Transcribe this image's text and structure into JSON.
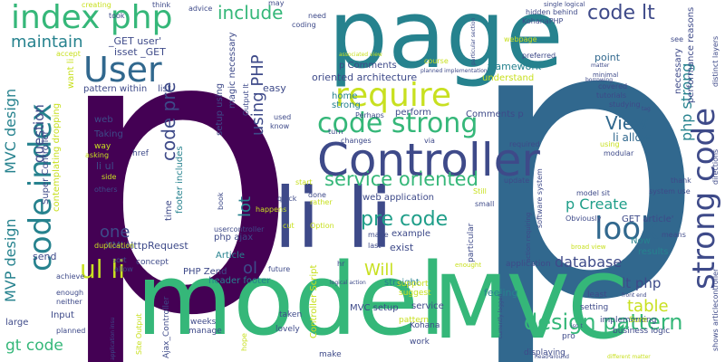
{
  "palette": {
    "navy": "#3b2a6e",
    "purple": "#440154",
    "blue": "#31688e",
    "indigo": "#3e4a89",
    "teal": "#26828e",
    "green": "#35b779",
    "lime": "#b5de2b",
    "lightgreen": "#6ece58",
    "seafoam": "#1f9e89",
    "yellowgreen": "#c8e020"
  },
  "words": [
    {
      "text": "p"
    },
    {
      "text": "p"
    },
    {
      "text": "page"
    },
    {
      "text": "model"
    },
    {
      "text": "MVC"
    },
    {
      "text": "li li"
    },
    {
      "text": "Controller"
    },
    {
      "text": "index php"
    },
    {
      "text": "User"
    },
    {
      "text": "require"
    },
    {
      "text": "code strong"
    },
    {
      "text": "strong code"
    },
    {
      "text": "code index"
    },
    {
      "text": "look"
    },
    {
      "text": "pre code"
    },
    {
      "text": "service oriented"
    },
    {
      "text": "ul li"
    },
    {
      "text": "design pattern"
    },
    {
      "text": "code lt"
    },
    {
      "text": "include"
    },
    {
      "text": "maintain"
    },
    {
      "text": "MVC design"
    },
    {
      "text": "MVP design"
    },
    {
      "text": "View"
    },
    {
      "text": "p Create"
    },
    {
      "text": "table"
    },
    {
      "text": "database"
    },
    {
      "text": "lt php"
    },
    {
      "text": "gt code"
    },
    {
      "text": "one"
    },
    {
      "text": "Will"
    },
    {
      "text": "ol"
    },
    {
      "text": "using PHP"
    },
    {
      "text": "code pre"
    },
    {
      "text": "lot"
    },
    {
      "text": "php strong"
    },
    {
      "text": "oriented architecture"
    },
    {
      "text": "framework"
    },
    {
      "text": "question"
    },
    {
      "text": "li allow"
    },
    {
      "text": "point"
    },
    {
      "text": "Comments p"
    },
    {
      "text": "p Comments"
    },
    {
      "text": "_GET user'"
    },
    {
      "text": "isset _GET"
    },
    {
      "text": "XMLHttpRequest"
    },
    {
      "text": "PHP Zend"
    },
    {
      "text": "header footer"
    },
    {
      "text": "Article"
    },
    {
      "text": "php ajax"
    },
    {
      "text": "straight"
    },
    {
      "text": "example"
    },
    {
      "text": "exist"
    },
    {
      "text": "web application"
    },
    {
      "text": "Taking"
    },
    {
      "text": "web"
    },
    {
      "text": "li ul"
    },
    {
      "text": "GET article'"
    },
    {
      "text": "results"
    },
    {
      "text": "understand"
    },
    {
      "text": "home"
    },
    {
      "text": "strong"
    },
    {
      "text": "perform"
    },
    {
      "text": "footer includes"
    },
    {
      "text": "setup using"
    },
    {
      "text": "magic necessary"
    },
    {
      "text": "easy"
    },
    {
      "text": "want li"
    },
    {
      "text": "pattern within"
    },
    {
      "text": "list"
    },
    {
      "text": "send"
    },
    {
      "text": "Input"
    },
    {
      "text": "large"
    },
    {
      "text": "Super Controller"
    },
    {
      "text": "contemplating dropping"
    },
    {
      "text": "MVC setup"
    },
    {
      "text": "Kohana"
    },
    {
      "text": "feeling"
    },
    {
      "text": "service"
    },
    {
      "text": "Controller Script"
    },
    {
      "text": "performance reasons"
    },
    {
      "text": "necessary"
    },
    {
      "text": "Now"
    },
    {
      "text": "application"
    },
    {
      "text": "business logic"
    },
    {
      "text": "implementing"
    },
    {
      "text": "least"
    },
    {
      "text": "setting"
    },
    {
      "text": "Sure"
    },
    {
      "text": "pro"
    },
    {
      "text": "displaying"
    },
    {
      "text": "work"
    },
    {
      "text": "pattern"
    },
    {
      "text": "support"
    },
    {
      "text": "suggest"
    },
    {
      "text": "taken"
    },
    {
      "text": "lovely"
    },
    {
      "text": "make"
    },
    {
      "text": "manage"
    },
    {
      "text": "weeks"
    },
    {
      "text": "Ajax_Controller"
    },
    {
      "text": "Site Output"
    },
    {
      "text": "concept"
    },
    {
      "text": "duplication"
    },
    {
      "text": "planned"
    },
    {
      "text": "neither"
    },
    {
      "text": "enough"
    },
    {
      "text": "achieve"
    },
    {
      "text": "sort"
    },
    {
      "text": "allow"
    },
    {
      "text": "time"
    },
    {
      "text": "others"
    },
    {
      "text": "way"
    },
    {
      "text": "href"
    },
    {
      "text": "asking"
    },
    {
      "text": "side"
    },
    {
      "text": "Option"
    },
    {
      "text": "usercontroller"
    },
    {
      "text": "cut"
    },
    {
      "text": "made"
    },
    {
      "text": "last"
    },
    {
      "text": "small"
    },
    {
      "text": "Still"
    },
    {
      "text": "update"
    },
    {
      "text": "required"
    },
    {
      "text": "changes"
    },
    {
      "text": "via"
    },
    {
      "text": "Perhaps"
    },
    {
      "text": "turn"
    },
    {
      "text": "used"
    },
    {
      "text": "know"
    },
    {
      "text": "Output lt"
    },
    {
      "text": "done"
    },
    {
      "text": "start"
    },
    {
      "text": "quick"
    },
    {
      "text": "happens"
    },
    {
      "text": "rather"
    },
    {
      "text": "book"
    },
    {
      "text": "hr"
    },
    {
      "text": "future"
    },
    {
      "text": "hope"
    },
    {
      "text": "software system"
    },
    {
      "text": "model sit"
    },
    {
      "text": "system use"
    },
    {
      "text": "thank"
    },
    {
      "text": "Obviously"
    },
    {
      "text": "means"
    },
    {
      "text": "modular"
    },
    {
      "text": "using"
    },
    {
      "text": "studying"
    },
    {
      "text": "covered"
    },
    {
      "text": "tutorials"
    },
    {
      "text": "preferred"
    },
    {
      "text": "hidden behind"
    },
    {
      "text": "single logical"
    },
    {
      "text": "KohanaPHP"
    },
    {
      "text": "advice"
    },
    {
      "text": "think"
    },
    {
      "text": "may"
    },
    {
      "text": "need"
    },
    {
      "text": "coding"
    },
    {
      "text": "creating"
    },
    {
      "text": "took"
    },
    {
      "text": "accept"
    },
    {
      "text": "associated view"
    },
    {
      "text": "course"
    },
    {
      "text": "planned implementation"
    },
    {
      "text": "particular section"
    },
    {
      "text": "webpage"
    },
    {
      "text": "see"
    },
    {
      "text": "shows"
    },
    {
      "text": "articlecontroller"
    },
    {
      "text": "distinct layers"
    },
    {
      "text": "directions"
    },
    {
      "text": "minimal"
    },
    {
      "text": "borrowing"
    },
    {
      "text": "matter"
    },
    {
      "text": "tag"
    },
    {
      "text": "broad view"
    },
    {
      "text": "different matter"
    },
    {
      "text": "front end"
    },
    {
      "text": "isn t"
    },
    {
      "text": "head around"
    },
    {
      "text": "currently logged"
    },
    {
      "text": "enought"
    },
    {
      "text": "logical action"
    },
    {
      "text": "application insu"
    },
    {
      "text": "particular"
    },
    {
      "text": "action requiring"
    }
  ]
}
